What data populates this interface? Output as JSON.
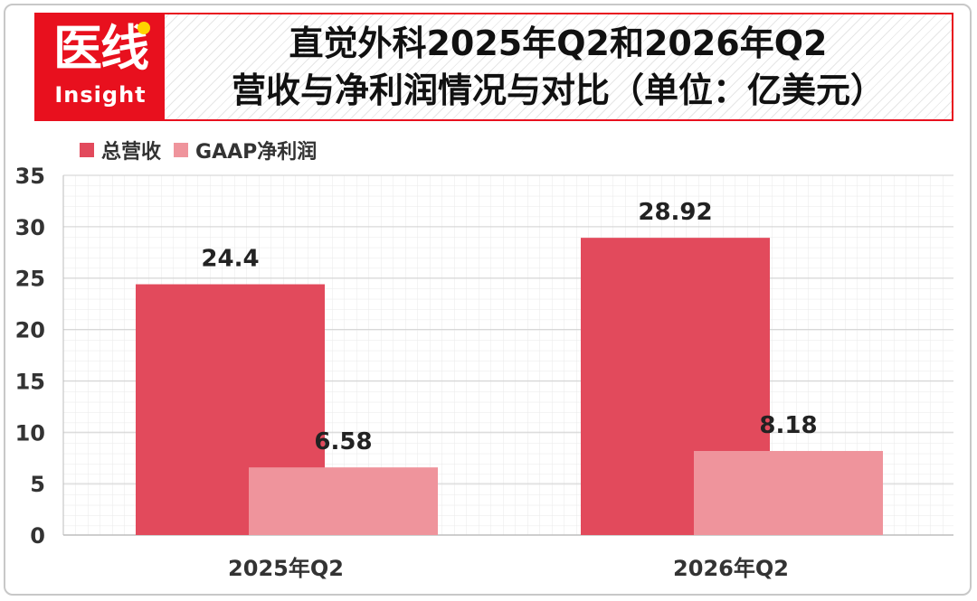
{
  "logo": {
    "main": "医线",
    "sub": "Insight"
  },
  "header": {
    "title_line1": "直觉外科2025年Q2和2026年Q2",
    "title_line2": "营收与净利润情况与对比（单位：亿美元）"
  },
  "colors": {
    "brand": "#e8101e",
    "revenue": "#e24a5c",
    "profit": "#ef949c"
  },
  "chart_data": {
    "type": "bar",
    "title": "直觉外科2025年Q2和2026年Q2营收与净利润情况与对比（单位：亿美元）",
    "categories": [
      "2025年Q2",
      "2026年Q2"
    ],
    "series": [
      {
        "name": "总营收",
        "values": [
          24.4,
          28.92
        ],
        "labels": [
          "24.4",
          "28.92"
        ]
      },
      {
        "name": "GAAP净利润",
        "values": [
          6.58,
          8.18
        ],
        "labels": [
          "6.58",
          "8.18"
        ]
      }
    ],
    "yticks": [
      "35",
      "30",
      "25",
      "20",
      "15",
      "10",
      "5",
      "0"
    ],
    "ylim": [
      0,
      35
    ],
    "grid": true,
    "legend": "top-left",
    "xlabel": "",
    "ylabel": ""
  }
}
